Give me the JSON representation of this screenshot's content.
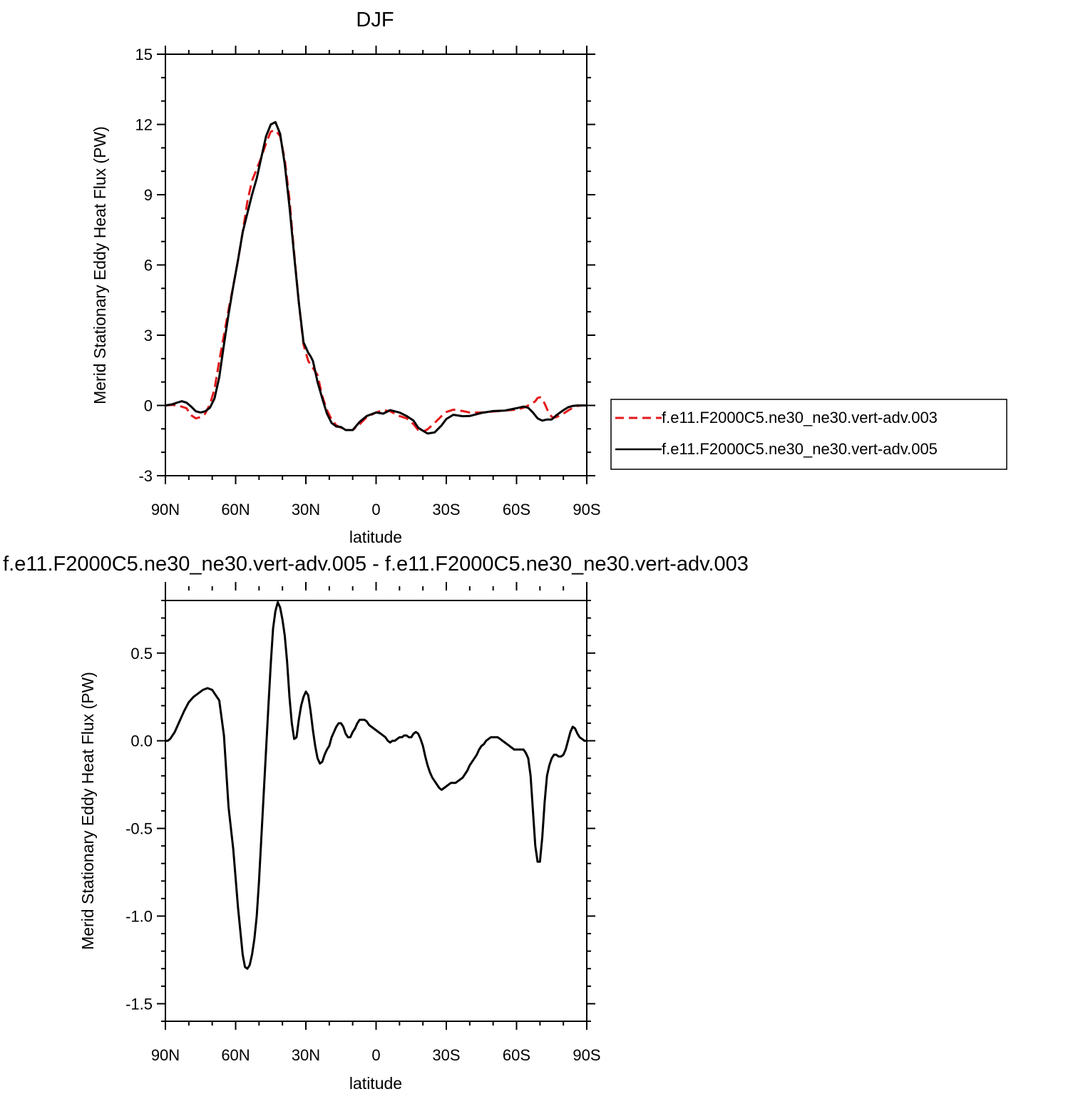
{
  "chart_data": [
    {
      "type": "line",
      "title": "DJF",
      "xlabel": "latitude",
      "ylabel": "Merid Stationary Eddy Heat Flux (PW)",
      "xlim": [
        90,
        -90
      ],
      "ylim": [
        -3,
        15
      ],
      "x_ticks": [
        90,
        60,
        30,
        0,
        -30,
        -60,
        -90
      ],
      "x_tick_labels": [
        "90N",
        "60N",
        "30N",
        "0",
        "30S",
        "60S",
        "90S"
      ],
      "y_ticks": [
        -3,
        0,
        3,
        6,
        9,
        12,
        15
      ],
      "y_tick_labels": [
        "-3",
        "0",
        "3",
        "6",
        "9",
        "12",
        "15"
      ],
      "y_minor_step": 1,
      "x_minor_step": 10,
      "grid": false,
      "legend": {
        "placement": "right",
        "entries": [
          "f.e11.F2000C5.ne30_ne30.vert-adv.003",
          "f.e11.F2000C5.ne30_ne30.vert-adv.005"
        ]
      },
      "series": [
        {
          "name": "f.e11.F2000C5.ne30_ne30.vert-adv.003",
          "color": "#e41a1c",
          "dash": "dashed",
          "x": [
            90,
            87,
            84,
            81,
            79,
            77,
            75,
            73,
            71,
            69,
            67,
            65,
            63,
            61,
            59,
            57,
            55,
            53,
            51,
            49,
            47,
            45,
            43,
            41,
            39,
            37,
            35,
            33,
            31,
            29,
            27,
            25,
            23,
            21,
            19,
            17,
            15,
            13,
            10,
            7,
            4,
            0,
            -3,
            -6,
            -10,
            -13,
            -16,
            -18,
            -20,
            -22,
            -25,
            -28,
            -30,
            -33,
            -37,
            -40,
            -45,
            -50,
            -55,
            -60,
            -63,
            -66,
            -68,
            -69,
            -70,
            -71,
            -72,
            -73,
            -74,
            -75,
            -76,
            -77,
            -78,
            -80,
            -82,
            -84,
            -86,
            -88,
            -90
          ],
          "y": [
            0,
            0.02,
            -0.02,
            -0.12,
            -0.42,
            -0.55,
            -0.5,
            -0.35,
            0.05,
            0.7,
            1.9,
            3.0,
            4.1,
            5.1,
            6.2,
            7.4,
            8.7,
            9.6,
            10.1,
            10.6,
            11.2,
            11.7,
            11.75,
            11.5,
            10.5,
            8.8,
            6.5,
            4.4,
            2.6,
            1.9,
            1.6,
            1.3,
            0.4,
            -0.2,
            -0.6,
            -0.85,
            -0.95,
            -1.05,
            -1.05,
            -0.8,
            -0.5,
            -0.3,
            -0.2,
            -0.25,
            -0.45,
            -0.55,
            -0.8,
            -1.05,
            -1.12,
            -1.02,
            -0.75,
            -0.45,
            -0.28,
            -0.18,
            -0.24,
            -0.3,
            -0.3,
            -0.26,
            -0.22,
            -0.18,
            -0.1,
            0.05,
            0.18,
            0.32,
            0.35,
            0.28,
            0.08,
            -0.15,
            -0.35,
            -0.48,
            -0.52,
            -0.5,
            -0.45,
            -0.35,
            -0.22,
            -0.1,
            -0.02,
            0,
            0
          ]
        },
        {
          "name": "f.e11.F2000C5.ne30_ne30.vert-adv.005",
          "color": "#000000",
          "dash": "solid",
          "x": [
            90,
            87,
            85,
            83,
            81,
            79,
            77,
            75,
            73,
            71,
            69,
            67,
            65,
            63,
            61,
            59,
            57,
            55,
            53,
            51,
            49,
            47,
            45,
            43,
            41,
            39,
            37,
            35,
            33,
            31,
            29,
            28,
            27,
            25,
            23,
            21,
            19,
            17,
            15,
            13,
            10,
            7,
            4,
            0,
            -3,
            -6,
            -10,
            -13,
            -16,
            -18,
            -20,
            -22,
            -25,
            -28,
            -30,
            -33,
            -37,
            -40,
            -45,
            -50,
            -55,
            -60,
            -63,
            -65,
            -67,
            -69,
            -71,
            -73,
            -75,
            -77,
            -80,
            -82,
            -84,
            -86,
            -88,
            -90
          ],
          "y": [
            0,
            0.05,
            0.12,
            0.18,
            0.12,
            -0.05,
            -0.25,
            -0.3,
            -0.25,
            -0.1,
            0.3,
            1.2,
            2.6,
            3.9,
            5.1,
            6.2,
            7.4,
            8.2,
            9.0,
            9.7,
            10.6,
            11.5,
            12.0,
            12.1,
            11.6,
            10.3,
            8.5,
            6.4,
            4.4,
            2.7,
            2.25,
            2.1,
            1.9,
            1.0,
            0.3,
            -0.35,
            -0.75,
            -0.9,
            -0.92,
            -1.05,
            -1.05,
            -0.7,
            -0.45,
            -0.3,
            -0.35,
            -0.2,
            -0.3,
            -0.45,
            -0.65,
            -0.95,
            -1.08,
            -1.2,
            -1.15,
            -0.85,
            -0.58,
            -0.4,
            -0.46,
            -0.45,
            -0.32,
            -0.24,
            -0.22,
            -0.12,
            -0.05,
            -0.1,
            -0.3,
            -0.55,
            -0.65,
            -0.6,
            -0.6,
            -0.42,
            -0.2,
            -0.08,
            -0.02,
            0,
            0,
            0
          ]
        }
      ]
    },
    {
      "type": "line",
      "title": "f.e11.F2000C5.ne30_ne30.vert-adv.005 - f.e11.F2000C5.ne30_ne30.vert-adv.003",
      "xlabel": "latitude",
      "ylabel": "Merid Stationary Eddy Heat Flux (PW)",
      "xlim": [
        90,
        -90
      ],
      "ylim": [
        -1.6,
        0.8
      ],
      "x_ticks": [
        90,
        60,
        30,
        0,
        -30,
        -60,
        -90
      ],
      "x_tick_labels": [
        "90N",
        "60N",
        "30N",
        "0",
        "30S",
        "60S",
        "90S"
      ],
      "y_ticks": [
        -1.5,
        -1.0,
        -0.5,
        0.0,
        0.5
      ],
      "y_tick_labels": [
        "-1.5",
        "-1.0",
        "-0.5",
        "0.0",
        "0.5"
      ],
      "y_minor_step": 0.1,
      "x_minor_step": 10,
      "grid": false,
      "series": [
        {
          "color": "#000000",
          "dash": "solid",
          "x": [
            90,
            89,
            88,
            86,
            84,
            82,
            80,
            78,
            76,
            74,
            72,
            70,
            69,
            68,
            67,
            65,
            63,
            61,
            59,
            57,
            56,
            55,
            54,
            53,
            52,
            51,
            50,
            49,
            48,
            47,
            46,
            45,
            44,
            43,
            42,
            41,
            40,
            39,
            38,
            37,
            36,
            35,
            34,
            33,
            32,
            31,
            30,
            29,
            28,
            27,
            26,
            25,
            24,
            23,
            22,
            21,
            20,
            19,
            18,
            17,
            16,
            15,
            14,
            13,
            12,
            11,
            10,
            9,
            8,
            7,
            6,
            5,
            4,
            3,
            2,
            1,
            0,
            -1,
            -2,
            -3,
            -4,
            -5,
            -6,
            -7,
            -8,
            -9,
            -10,
            -11,
            -12,
            -13,
            -14,
            -15,
            -16,
            -17,
            -18,
            -19,
            -20,
            -21,
            -22,
            -23,
            -24,
            -25,
            -26,
            -27,
            -28,
            -29,
            -30,
            -31,
            -32,
            -33,
            -34,
            -35,
            -36,
            -37,
            -38,
            -39,
            -40,
            -41,
            -42,
            -43,
            -44,
            -45,
            -46,
            -47,
            -48,
            -49,
            -50,
            -51,
            -52,
            -53,
            -54,
            -55,
            -56,
            -57,
            -58,
            -59,
            -60,
            -61,
            -62,
            -63,
            -64,
            -65,
            -66,
            -67,
            -68,
            -69,
            -70,
            -71,
            -72,
            -73,
            -74,
            -75,
            -76,
            -77,
            -78,
            -79,
            -80,
            -81,
            -82,
            -83,
            -84,
            -85,
            -86,
            -87,
            -88,
            -89,
            -90
          ],
          "y": [
            0.0,
            0.0,
            0.01,
            0.05,
            0.11,
            0.17,
            0.22,
            0.25,
            0.27,
            0.29,
            0.3,
            0.29,
            0.27,
            0.25,
            0.23,
            0.03,
            -0.38,
            -0.62,
            -0.95,
            -1.22,
            -1.29,
            -1.3,
            -1.28,
            -1.22,
            -1.13,
            -1.0,
            -0.8,
            -0.55,
            -0.3,
            -0.05,
            0.2,
            0.44,
            0.64,
            0.74,
            0.79,
            0.76,
            0.69,
            0.6,
            0.45,
            0.25,
            0.1,
            0.01,
            0.02,
            0.12,
            0.2,
            0.25,
            0.28,
            0.26,
            0.17,
            0.06,
            -0.03,
            -0.1,
            -0.13,
            -0.12,
            -0.08,
            -0.05,
            -0.03,
            0.02,
            0.05,
            0.08,
            0.1,
            0.1,
            0.08,
            0.04,
            0.02,
            0.02,
            0.05,
            0.07,
            0.1,
            0.12,
            0.12,
            0.12,
            0.11,
            0.09,
            0.08,
            0.07,
            0.06,
            0.05,
            0.04,
            0.03,
            0.02,
            0.0,
            -0.01,
            0.0,
            0.0,
            0.01,
            0.02,
            0.02,
            0.03,
            0.03,
            0.02,
            0.02,
            0.04,
            0.05,
            0.04,
            0.01,
            -0.03,
            -0.09,
            -0.14,
            -0.18,
            -0.21,
            -0.23,
            -0.25,
            -0.27,
            -0.28,
            -0.27,
            -0.26,
            -0.25,
            -0.24,
            -0.24,
            -0.24,
            -0.23,
            -0.22,
            -0.21,
            -0.19,
            -0.17,
            -0.14,
            -0.12,
            -0.1,
            -0.08,
            -0.05,
            -0.03,
            -0.02,
            0.0,
            0.01,
            0.02,
            0.02,
            0.02,
            0.02,
            0.01,
            0.0,
            -0.01,
            -0.02,
            -0.03,
            -0.04,
            -0.05,
            -0.05,
            -0.05,
            -0.05,
            -0.05,
            -0.07,
            -0.1,
            -0.2,
            -0.4,
            -0.6,
            -0.69,
            -0.69,
            -0.55,
            -0.35,
            -0.2,
            -0.14,
            -0.1,
            -0.08,
            -0.08,
            -0.09,
            -0.09,
            -0.08,
            -0.05,
            0.0,
            0.05,
            0.08,
            0.07,
            0.04,
            0.02,
            0.01,
            0.0,
            0.0
          ]
        }
      ]
    }
  ]
}
